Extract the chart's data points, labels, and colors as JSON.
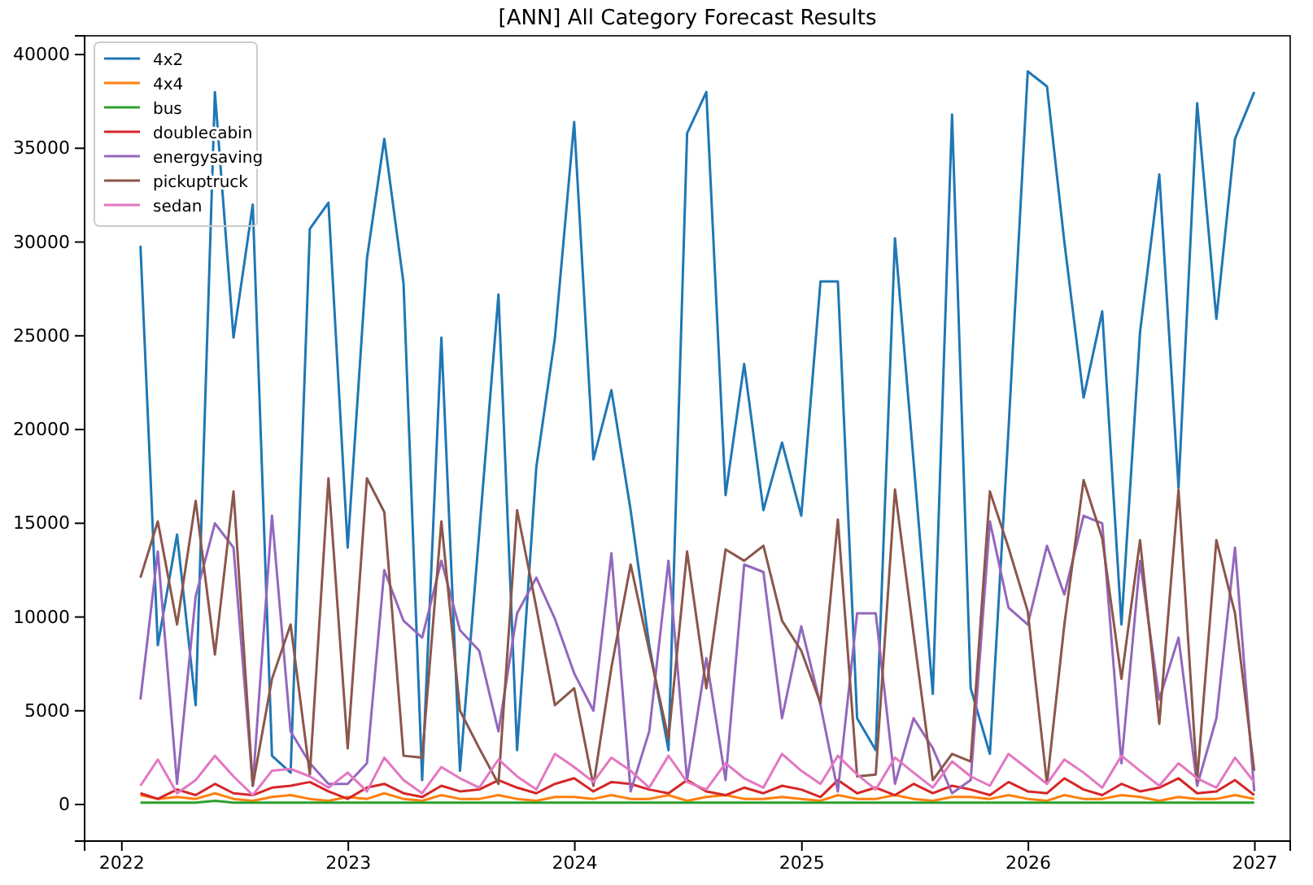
{
  "chart_data": {
    "type": "line",
    "title": "[ANN] All Category Forecast Results",
    "x": [
      "2022-01-31",
      "2022-02-28",
      "2022-03-31",
      "2022-04-30",
      "2022-05-31",
      "2022-06-30",
      "2022-07-31",
      "2022-08-31",
      "2022-09-30",
      "2022-10-31",
      "2022-11-30",
      "2022-12-31",
      "2023-01-31",
      "2023-02-28",
      "2023-03-31",
      "2023-04-30",
      "2023-05-31",
      "2023-06-30",
      "2023-07-31",
      "2023-08-31",
      "2023-09-30",
      "2023-10-31",
      "2023-11-30",
      "2023-12-31",
      "2024-01-31",
      "2024-02-29",
      "2024-03-31",
      "2024-04-30",
      "2024-05-31",
      "2024-06-30",
      "2024-07-31",
      "2024-08-31",
      "2024-09-30",
      "2024-10-31",
      "2024-11-30",
      "2024-12-31",
      "2025-01-31",
      "2025-02-28",
      "2025-03-31",
      "2025-04-30",
      "2025-05-31",
      "2025-06-30",
      "2025-07-31",
      "2025-08-31",
      "2025-09-30",
      "2025-10-31",
      "2025-11-30",
      "2025-12-31",
      "2026-01-31",
      "2026-02-28",
      "2026-03-31",
      "2026-04-30",
      "2026-05-31",
      "2026-06-30",
      "2026-07-31",
      "2026-08-31",
      "2026-09-30",
      "2026-10-31",
      "2026-11-30",
      "2026-12-31"
    ],
    "series": [
      {
        "name": "4x2",
        "color": "#1f77b4",
        "values": [
          29800,
          8500,
          14400,
          5300,
          38000,
          24900,
          32000,
          2600,
          1700,
          30700,
          32100,
          13700,
          29100,
          35500,
          27800,
          1300,
          24900,
          1800,
          14500,
          27200,
          2900,
          18000,
          24900,
          36400,
          18400,
          22100,
          15700,
          8500,
          2900,
          35800,
          38000,
          16500,
          23500,
          15700,
          19300,
          15400,
          27900,
          27900,
          4600,
          2900,
          30200,
          18300,
          5900,
          36800,
          6200,
          2700,
          20000,
          39100,
          38300,
          30000,
          21700,
          26300,
          9600,
          25200,
          33600,
          16900,
          37400,
          25900,
          35500,
          38000
        ]
      },
      {
        "name": "4x4",
        "color": "#ff7f0e",
        "values": [
          500,
          300,
          400,
          300,
          600,
          300,
          200,
          400,
          500,
          300,
          200,
          400,
          300,
          600,
          300,
          200,
          500,
          300,
          300,
          500,
          300,
          200,
          400,
          400,
          300,
          500,
          300,
          300,
          500,
          200,
          400,
          500,
          300,
          300,
          400,
          300,
          200,
          500,
          300,
          300,
          500,
          300,
          200,
          400,
          400,
          300,
          500,
          300,
          200,
          500,
          300,
          300,
          500,
          400,
          200,
          400,
          300,
          300,
          500,
          300
        ]
      },
      {
        "name": "bus",
        "color": "#2ca02c",
        "values": [
          100,
          100,
          100,
          100,
          200,
          100,
          100,
          100,
          100,
          100,
          100,
          100,
          100,
          100,
          100,
          100,
          100,
          100,
          100,
          100,
          100,
          100,
          100,
          100,
          100,
          100,
          100,
          100,
          100,
          100,
          100,
          100,
          100,
          100,
          100,
          100,
          100,
          100,
          100,
          100,
          100,
          100,
          100,
          100,
          100,
          100,
          100,
          100,
          100,
          100,
          100,
          100,
          100,
          100,
          100,
          100,
          100,
          100,
          100,
          100
        ]
      },
      {
        "name": "doublecabin",
        "color": "#d62728",
        "values": [
          600,
          300,
          800,
          500,
          1100,
          600,
          500,
          900,
          1000,
          1200,
          700,
          300,
          900,
          1100,
          600,
          400,
          1000,
          700,
          800,
          1300,
          900,
          600,
          1100,
          1400,
          700,
          1200,
          1100,
          800,
          600,
          1300,
          700,
          500,
          900,
          600,
          1000,
          800,
          400,
          1300,
          600,
          900,
          500,
          1100,
          600,
          1000,
          800,
          500,
          1200,
          700,
          600,
          1400,
          800,
          500,
          1100,
          700,
          900,
          1400,
          600,
          700,
          1300,
          500
        ]
      },
      {
        "name": "energysaving",
        "color": "#9467bd",
        "values": [
          5600,
          13500,
          1100,
          11100,
          15000,
          13700,
          1000,
          15400,
          3900,
          2200,
          1100,
          1100,
          2200,
          12500,
          9800,
          8900,
          13000,
          9300,
          8200,
          3900,
          10200,
          12100,
          9900,
          7000,
          5000,
          13400,
          700,
          3900,
          13000,
          1300,
          7800,
          1300,
          12800,
          12400,
          4600,
          9500,
          5300,
          700,
          10200,
          10200,
          1100,
          4600,
          3000,
          600,
          1300,
          15100,
          10500,
          9600,
          13800,
          11200,
          15400,
          15000,
          2200,
          13000,
          5600,
          8900,
          1000,
          4600,
          13700,
          700
        ]
      },
      {
        "name": "pickuptruck",
        "color": "#8c564b",
        "values": [
          12100,
          15100,
          9600,
          16200,
          8000,
          16700,
          1000,
          6700,
          9600,
          1600,
          17400,
          3000,
          17400,
          15600,
          2600,
          2500,
          15100,
          5000,
          3000,
          1100,
          15700,
          10500,
          5300,
          6200,
          1000,
          7300,
          12800,
          8200,
          3500,
          13500,
          6200,
          13600,
          13000,
          13800,
          9800,
          8200,
          5400,
          15200,
          1500,
          1600,
          16800,
          9100,
          1300,
          2700,
          2300,
          16700,
          13700,
          10300,
          1100,
          9600,
          17300,
          14200,
          6700,
          14100,
          4300,
          16800,
          1300,
          14100,
          10200,
          1800
        ]
      },
      {
        "name": "sedan",
        "color": "#e377c2",
        "values": [
          1000,
          2400,
          600,
          1300,
          2600,
          1500,
          500,
          1800,
          1900,
          1500,
          900,
          1700,
          700,
          2500,
          1300,
          600,
          2000,
          1400,
          900,
          2400,
          1500,
          800,
          2700,
          2000,
          1200,
          2500,
          1800,
          900,
          2600,
          1200,
          800,
          2200,
          1400,
          900,
          2700,
          1800,
          1100,
          2600,
          1600,
          800,
          2500,
          1700,
          900,
          2300,
          1500,
          1000,
          2700,
          1900,
          1100,
          2400,
          1700,
          900,
          2600,
          1800,
          1000,
          2200,
          1400,
          900,
          2500,
          1200
        ]
      }
    ],
    "xlim": [
      "2021-11-02",
      "2027-02-27"
    ],
    "xticks": [
      {
        "value": "2022-01-01",
        "label": "2022"
      },
      {
        "value": "2023-01-01",
        "label": "2023"
      },
      {
        "value": "2024-01-01",
        "label": "2024"
      },
      {
        "value": "2025-01-01",
        "label": "2025"
      },
      {
        "value": "2026-01-01",
        "label": "2026"
      },
      {
        "value": "2027-01-01",
        "label": "2027"
      }
    ],
    "ylim": [
      -1950,
      41000
    ],
    "yticks": [
      0,
      5000,
      10000,
      15000,
      20000,
      25000,
      30000,
      35000,
      40000
    ],
    "legend": "top left"
  }
}
